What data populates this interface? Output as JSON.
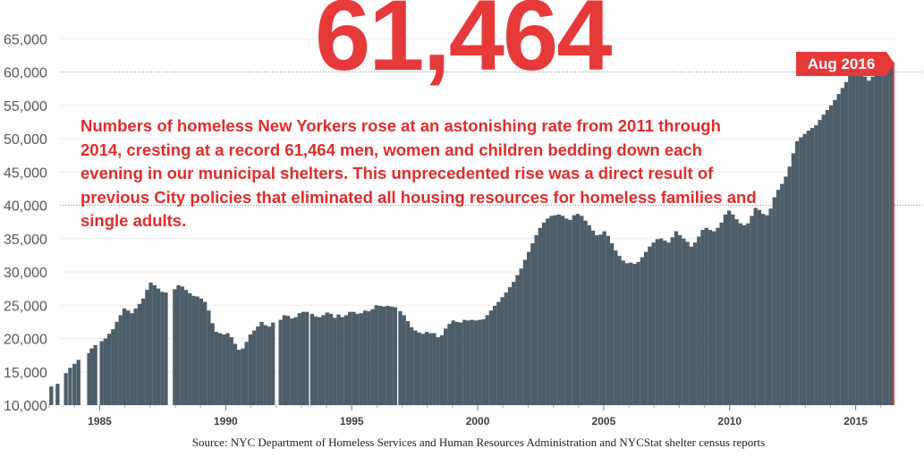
{
  "headline": "61,464",
  "annotation": "Numbers of homeless New Yorkers rose at an astonishing rate from 2011 through 2014, cresting at a record 61,464 men, women and children bedding down each evening in our municipal shelters. This unprecedented rise was a direct result of previous City policies that eliminated all housing resources for homeless families and single adults.",
  "flag_label": "Aug 2016",
  "source": "Source: NYC Department of Homeless Services and Human Resources Administration and NYCStat shelter census reports",
  "colors": {
    "bars": "#4d5e6b",
    "accent": "#e63a3a",
    "grid": "#c9c9c9"
  },
  "chart_data": {
    "type": "bar",
    "title": "",
    "xlabel": "",
    "ylabel": "",
    "ylim": [
      10000,
      66000
    ],
    "yticks": [
      10000,
      15000,
      20000,
      25000,
      30000,
      35000,
      40000,
      45000,
      50000,
      55000,
      60000,
      65000
    ],
    "ytick_labels": [
      "10,000",
      "15,000",
      "20,000",
      "25,000",
      "30,000",
      "35,000",
      "40,000",
      "45,000",
      "50,000",
      "55,000",
      "60,000",
      "65,000"
    ],
    "xticks": [
      1985,
      1990,
      1995,
      2000,
      2005,
      2010,
      2015
    ],
    "xtick_labels": [
      "1985",
      "1990",
      "1995",
      "2000",
      "2005",
      "2010",
      "2015"
    ],
    "xlim": [
      1983,
      2016.6
    ],
    "grid": "dotted horizontal at 40,000 and 60,000",
    "series": [
      {
        "values": [
          [
            1983.0,
            12800
          ],
          [
            1983.25,
            13200
          ],
          [
            1983.58,
            14800
          ],
          [
            1983.75,
            15600
          ],
          [
            1983.92,
            16200
          ],
          [
            1984.08,
            16800
          ],
          [
            1984.5,
            17800
          ],
          [
            1984.6,
            18500
          ],
          [
            1984.75,
            19000
          ],
          [
            1985.0,
            19600
          ],
          [
            1985.15,
            20000
          ],
          [
            1985.3,
            20700
          ],
          [
            1985.45,
            21400
          ],
          [
            1985.6,
            22500
          ],
          [
            1985.75,
            23500
          ],
          [
            1985.9,
            24500
          ],
          [
            1986.05,
            24200
          ],
          [
            1986.2,
            23800
          ],
          [
            1986.35,
            24500
          ],
          [
            1986.5,
            25200
          ],
          [
            1986.65,
            26000
          ],
          [
            1986.8,
            27300
          ],
          [
            1986.95,
            28400
          ],
          [
            1987.1,
            28000
          ],
          [
            1987.25,
            27500
          ],
          [
            1987.4,
            27000
          ],
          [
            1987.55,
            26900
          ],
          [
            1987.9,
            27400
          ],
          [
            1988.05,
            28000
          ],
          [
            1988.2,
            27800
          ],
          [
            1988.35,
            27300
          ],
          [
            1988.5,
            26800
          ],
          [
            1988.65,
            26400
          ],
          [
            1988.8,
            26300
          ],
          [
            1988.95,
            26000
          ],
          [
            1989.1,
            25500
          ],
          [
            1989.25,
            24200
          ],
          [
            1989.4,
            22300
          ],
          [
            1989.55,
            21000
          ],
          [
            1989.7,
            20800
          ],
          [
            1989.85,
            20600
          ],
          [
            1990.0,
            20800
          ],
          [
            1990.15,
            20200
          ],
          [
            1990.3,
            19200
          ],
          [
            1990.45,
            18300
          ],
          [
            1990.6,
            18500
          ],
          [
            1990.75,
            19500
          ],
          [
            1990.9,
            20600
          ],
          [
            1991.05,
            21200
          ],
          [
            1991.2,
            21800
          ],
          [
            1991.35,
            22500
          ],
          [
            1991.5,
            22000
          ],
          [
            1991.65,
            21800
          ],
          [
            1991.8,
            22400
          ],
          [
            1992.1,
            22800
          ],
          [
            1992.25,
            23500
          ],
          [
            1992.4,
            23400
          ],
          [
            1992.55,
            23000
          ],
          [
            1992.7,
            23200
          ],
          [
            1992.85,
            23800
          ],
          [
            1993.0,
            24000
          ],
          [
            1993.15,
            24000
          ],
          [
            1993.35,
            23700
          ],
          [
            1993.5,
            23300
          ],
          [
            1993.65,
            23200
          ],
          [
            1993.8,
            23500
          ],
          [
            1993.95,
            23900
          ],
          [
            1994.1,
            23700
          ],
          [
            1994.25,
            23100
          ],
          [
            1994.4,
            23600
          ],
          [
            1994.55,
            23200
          ],
          [
            1994.7,
            23500
          ],
          [
            1994.85,
            24000
          ],
          [
            1995.0,
            24000
          ],
          [
            1995.15,
            23700
          ],
          [
            1995.3,
            23800
          ],
          [
            1995.45,
            24200
          ],
          [
            1995.6,
            24100
          ],
          [
            1995.75,
            24400
          ],
          [
            1995.9,
            25000
          ],
          [
            1996.05,
            24900
          ],
          [
            1996.2,
            24800
          ],
          [
            1996.35,
            24900
          ],
          [
            1996.5,
            24800
          ],
          [
            1996.65,
            24700
          ],
          [
            1996.85,
            24100
          ],
          [
            1997.0,
            23500
          ],
          [
            1997.15,
            22600
          ],
          [
            1997.3,
            21700
          ],
          [
            1997.45,
            21200
          ],
          [
            1997.6,
            20900
          ],
          [
            1997.75,
            20700
          ],
          [
            1997.9,
            21000
          ],
          [
            1998.05,
            20800
          ],
          [
            1998.2,
            20800
          ],
          [
            1998.35,
            20200
          ],
          [
            1998.5,
            20500
          ],
          [
            1998.65,
            21500
          ],
          [
            1998.8,
            22200
          ],
          [
            1998.95,
            22700
          ],
          [
            1999.1,
            22500
          ],
          [
            1999.25,
            22400
          ],
          [
            1999.4,
            22800
          ],
          [
            1999.55,
            22700
          ],
          [
            1999.7,
            22800
          ],
          [
            1999.85,
            22700
          ],
          [
            2000.0,
            22800
          ],
          [
            2000.15,
            22900
          ],
          [
            2000.3,
            23500
          ],
          [
            2000.45,
            24200
          ],
          [
            2000.6,
            24900
          ],
          [
            2000.75,
            25500
          ],
          [
            2000.9,
            26200
          ],
          [
            2001.05,
            26900
          ],
          [
            2001.2,
            27700
          ],
          [
            2001.35,
            28500
          ],
          [
            2001.5,
            29500
          ],
          [
            2001.65,
            30500
          ],
          [
            2001.8,
            31800
          ],
          [
            2001.95,
            33000
          ],
          [
            2002.1,
            34300
          ],
          [
            2002.25,
            35500
          ],
          [
            2002.4,
            36600
          ],
          [
            2002.55,
            37400
          ],
          [
            2002.7,
            38000
          ],
          [
            2002.85,
            38400
          ],
          [
            2003.0,
            38500
          ],
          [
            2003.15,
            38600
          ],
          [
            2003.3,
            38400
          ],
          [
            2003.45,
            38000
          ],
          [
            2003.6,
            37800
          ],
          [
            2003.75,
            38500
          ],
          [
            2003.9,
            38700
          ],
          [
            2004.05,
            38400
          ],
          [
            2004.2,
            37700
          ],
          [
            2004.35,
            37000
          ],
          [
            2004.5,
            36200
          ],
          [
            2004.65,
            35500
          ],
          [
            2004.8,
            35600
          ],
          [
            2004.95,
            36100
          ],
          [
            2005.1,
            35400
          ],
          [
            2005.25,
            34300
          ],
          [
            2005.4,
            33200
          ],
          [
            2005.55,
            32400
          ],
          [
            2005.7,
            31700
          ],
          [
            2005.85,
            31300
          ],
          [
            2006.0,
            31400
          ],
          [
            2006.15,
            31200
          ],
          [
            2006.3,
            31500
          ],
          [
            2006.45,
            32200
          ],
          [
            2006.6,
            33000
          ],
          [
            2006.75,
            33800
          ],
          [
            2006.9,
            34400
          ],
          [
            2007.05,
            34900
          ],
          [
            2007.2,
            35000
          ],
          [
            2007.35,
            34700
          ],
          [
            2007.5,
            34400
          ],
          [
            2007.65,
            35200
          ],
          [
            2007.8,
            36100
          ],
          [
            2007.95,
            35500
          ],
          [
            2008.1,
            35000
          ],
          [
            2008.25,
            34500
          ],
          [
            2008.4,
            33800
          ],
          [
            2008.55,
            34400
          ],
          [
            2008.7,
            35300
          ],
          [
            2008.85,
            36300
          ],
          [
            2009.0,
            36600
          ],
          [
            2009.15,
            36300
          ],
          [
            2009.3,
            36100
          ],
          [
            2009.45,
            36600
          ],
          [
            2009.6,
            37400
          ],
          [
            2009.75,
            38600
          ],
          [
            2009.9,
            39200
          ],
          [
            2010.05,
            38600
          ],
          [
            2010.2,
            37900
          ],
          [
            2010.35,
            37300
          ],
          [
            2010.5,
            37000
          ],
          [
            2010.65,
            37300
          ],
          [
            2010.8,
            38400
          ],
          [
            2010.95,
            39600
          ],
          [
            2011.1,
            39300
          ],
          [
            2011.25,
            38700
          ],
          [
            2011.4,
            38500
          ],
          [
            2011.55,
            39500
          ],
          [
            2011.7,
            41200
          ],
          [
            2011.85,
            42300
          ],
          [
            2012.0,
            43200
          ],
          [
            2012.15,
            44300
          ],
          [
            2012.3,
            45800
          ],
          [
            2012.45,
            47800
          ],
          [
            2012.6,
            49600
          ],
          [
            2012.75,
            50200
          ],
          [
            2012.9,
            50700
          ],
          [
            2013.05,
            51200
          ],
          [
            2013.2,
            51600
          ],
          [
            2013.35,
            52000
          ],
          [
            2013.5,
            52800
          ],
          [
            2013.65,
            53600
          ],
          [
            2013.8,
            54300
          ],
          [
            2013.95,
            55000
          ],
          [
            2014.1,
            55800
          ],
          [
            2014.25,
            56700
          ],
          [
            2014.4,
            57600
          ],
          [
            2014.55,
            58500
          ],
          [
            2014.7,
            59400
          ],
          [
            2014.85,
            60700
          ],
          [
            2015.0,
            60300
          ],
          [
            2015.15,
            59700
          ],
          [
            2015.3,
            59300
          ],
          [
            2015.45,
            58700
          ],
          [
            2015.6,
            59300
          ],
          [
            2015.75,
            60000
          ],
          [
            2015.9,
            60600
          ],
          [
            2016.05,
            60900
          ],
          [
            2016.2,
            61200
          ],
          [
            2016.35,
            61464
          ]
        ]
      }
    ]
  }
}
